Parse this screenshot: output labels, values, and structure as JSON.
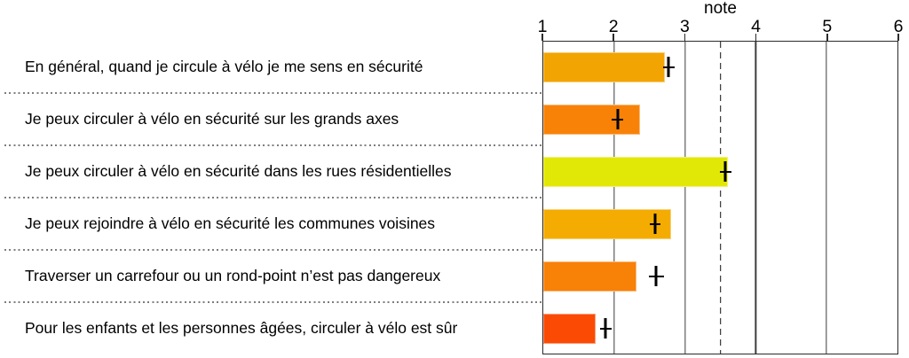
{
  "chart_data": {
    "type": "bar",
    "orientation": "horizontal",
    "title": "note",
    "axis": {
      "position": "top",
      "min": 1,
      "max": 6,
      "ticks": [
        1,
        2,
        3,
        4,
        5,
        6
      ],
      "solid_gridlines": [
        2,
        3,
        4,
        5
      ],
      "dashed_reference_line": 3.5,
      "grid": true,
      "row_separators": "dotted"
    },
    "items": [
      {
        "label": "En général, quand je circule à vélo je me sens en sécurité",
        "bar_value": 2.72,
        "marker_value": 2.77,
        "ci": [
          2.69,
          2.85
        ],
        "color": "#F2A402"
      },
      {
        "label": "Je peux circuler à vélo en sécurité sur les grands axes",
        "bar_value": 2.36,
        "marker_value": 2.05,
        "ci": [
          1.97,
          2.13
        ],
        "color": "#F88208"
      },
      {
        "label": "Je peux circuler à vélo en sécurité dans les rues résidentielles",
        "bar_value": 3.61,
        "marker_value": 3.57,
        "ci": [
          3.49,
          3.66
        ],
        "color": "#E2E805"
      },
      {
        "label": "Je peux rejoindre à vélo en sécurité les communes voisines",
        "bar_value": 2.8,
        "marker_value": 2.58,
        "ci": [
          2.5,
          2.66
        ],
        "color": "#F4AC02"
      },
      {
        "label": "Traverser un carrefour ou un rond-point n’est pas dangereux",
        "bar_value": 2.31,
        "marker_value": 2.59,
        "ci": [
          2.49,
          2.7
        ],
        "color": "#F88108"
      },
      {
        "label": "Pour les enfants et les personnes âgées, circuler à vélo est sûr",
        "bar_value": 1.74,
        "marker_value": 1.88,
        "ci": [
          1.8,
          1.96
        ],
        "color": "#FB4A04"
      }
    ]
  }
}
